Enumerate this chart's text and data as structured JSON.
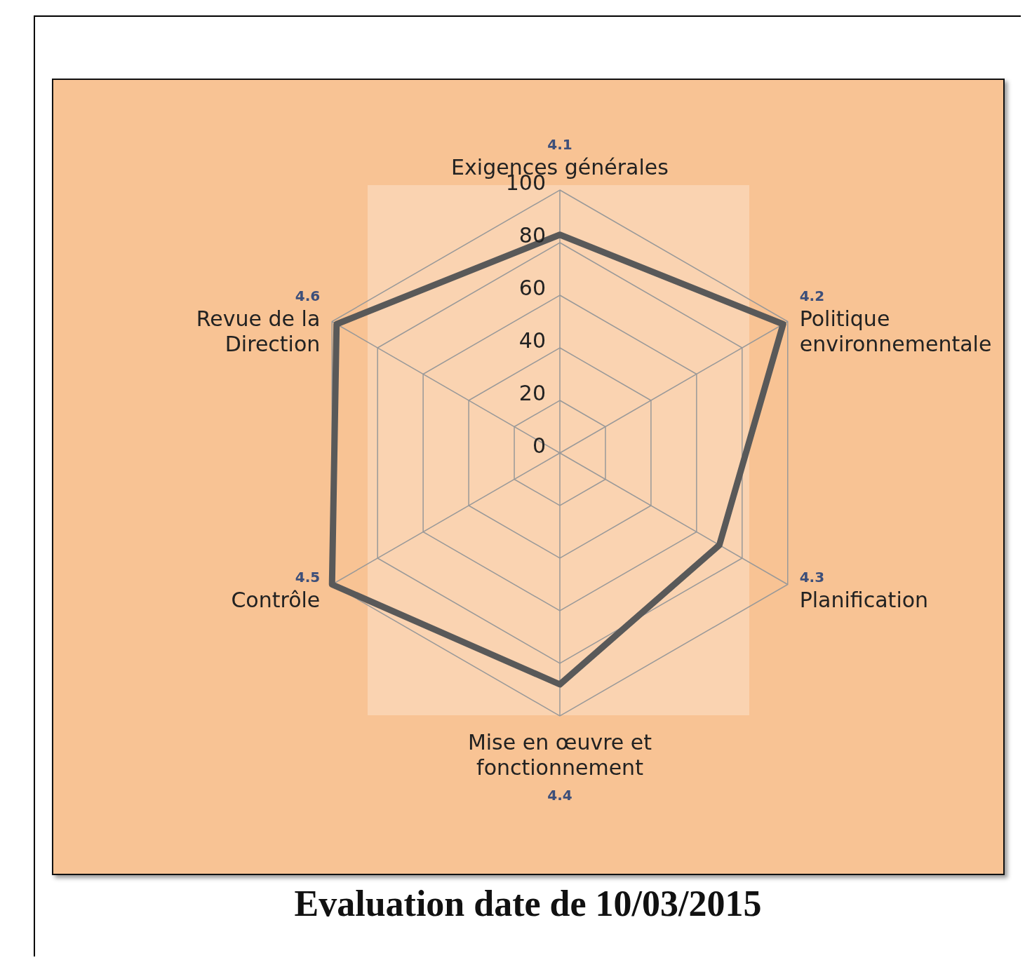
{
  "chart_data": {
    "type": "radar",
    "title": "Evaluation date de 10/03/2015",
    "categories": [
      "4.1\nExigences générales",
      "4.2\nPolitique\nenvironnementale",
      "4.3\nPlanification",
      "Mise en œuvre et\nfonctionnement\n4.4",
      "4.5\nContrôle",
      "4.6\nRevue de la\nDirection"
    ],
    "series": [
      {
        "color": "#595959",
        "values": [
          83,
          98,
          70,
          88,
          100,
          98
        ]
      }
    ],
    "ylim": [
      0,
      100
    ],
    "yticks": [
      0,
      20,
      40,
      60,
      80,
      100
    ],
    "grid": true
  }
}
